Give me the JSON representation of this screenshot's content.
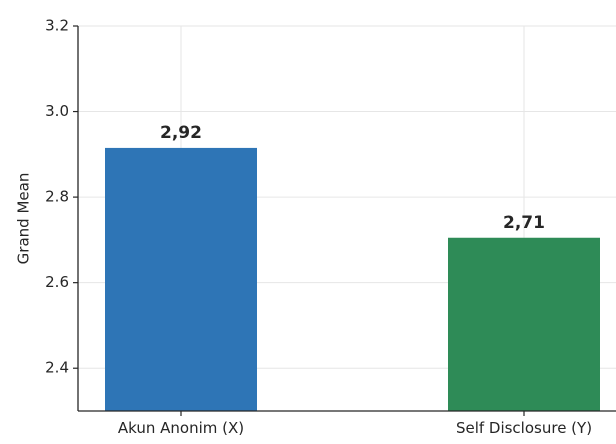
{
  "chart_data": {
    "type": "bar",
    "title": "",
    "xlabel": "",
    "ylabel": "Grand Mean",
    "categories": [
      "Akun Anonim (X)",
      "Self Disclosure (Y)"
    ],
    "values": [
      2.915,
      2.705
    ],
    "data_labels": [
      "2,92",
      "2,71"
    ],
    "colors": [
      "#2e75b6",
      "#2e8b57"
    ],
    "ylim": [
      2.3,
      3.2
    ],
    "yticks": [
      2.4,
      2.6,
      2.8,
      3.0,
      3.2
    ],
    "ytick_labels": [
      "2.4",
      "2.6",
      "2.8",
      "3.0",
      "3.2"
    ],
    "grid": true,
    "legend": "none"
  }
}
